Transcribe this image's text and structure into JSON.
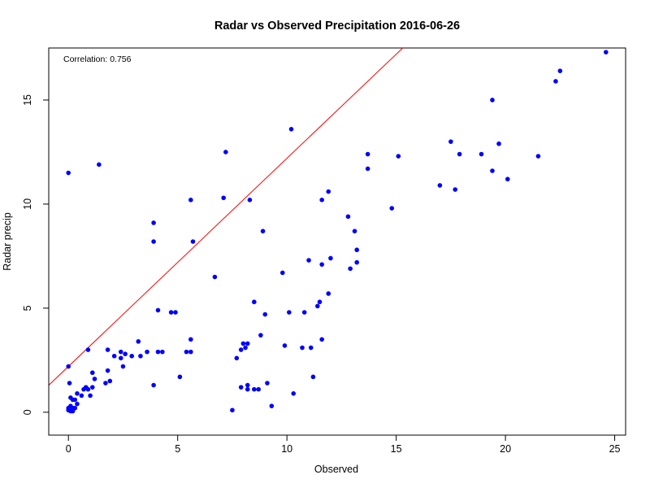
{
  "chart_data": {
    "type": "scatter",
    "title": "Radar vs Observed Precipitation 2016-06-26",
    "xlabel": "Observed",
    "ylabel": "Radar precip",
    "xlim": [
      -0.9,
      25.5
    ],
    "ylim": [
      -1.1,
      17.5
    ],
    "x_ticks": [
      "0",
      "5",
      "10",
      "15",
      "20",
      "25"
    ],
    "y_ticks": [
      "0",
      "5",
      "10",
      "15"
    ],
    "grid": false,
    "annotation": "Correlation:  0.756",
    "point_color": "#0000ff",
    "line_color": "#ff0000",
    "reference_line": {
      "intercept": 2.2,
      "slope": 1.0
    },
    "points": {
      "x": [
        24.6,
        22.5,
        22.3,
        19.4,
        17.5,
        19.7,
        18.9,
        21.5,
        17.9,
        19.4,
        20.1,
        17.0,
        17.7,
        13.7,
        13.7,
        15.1,
        14.8,
        12.8,
        13.1,
        13.2,
        13.2,
        12.9,
        11.9,
        11.6,
        11.0,
        12.0,
        11.6,
        11.9,
        11.5,
        11.4,
        10.8,
        10.1,
        9.8,
        11.6,
        10.7,
        11.1,
        9.9,
        11.2,
        10.3,
        10.2,
        8.3,
        8.9,
        7.2,
        7.1,
        5.6,
        5.7,
        6.7,
        3.9,
        3.9,
        9.0,
        8.8,
        8.5,
        8.2,
        8.0,
        8.1,
        7.9,
        7.7,
        8.2,
        7.9,
        8.2,
        8.5,
        8.7,
        9.1,
        9.3,
        7.5,
        4.1,
        5.6,
        0.0,
        1.4,
        4.1,
        4.7,
        4.9,
        3.2,
        5.6,
        5.4,
        5.1,
        3.6,
        4.3,
        3.9,
        0.9,
        1.8,
        2.4,
        2.1,
        2.6,
        2.4,
        2.9,
        3.3,
        2.5,
        1.8,
        1.9,
        1.7,
        1.1,
        1.2,
        1.1,
        1.0,
        0.7,
        0.8,
        0.9,
        0.6,
        0.4,
        0.3,
        0.2,
        0.1,
        0.3,
        0.1,
        0.2,
        0.0,
        0.0,
        0.1,
        0.2,
        0.4,
        0.0,
        0.05
      ],
      "y": [
        17.3,
        16.4,
        15.9,
        15.0,
        13.0,
        12.9,
        12.4,
        12.3,
        12.4,
        11.6,
        11.2,
        10.9,
        10.7,
        12.4,
        11.7,
        12.3,
        9.8,
        9.4,
        8.7,
        7.8,
        7.2,
        6.9,
        10.6,
        10.2,
        7.3,
        7.4,
        7.1,
        5.7,
        5.3,
        5.1,
        4.8,
        4.8,
        6.7,
        3.5,
        3.1,
        3.1,
        3.2,
        1.7,
        0.9,
        13.6,
        10.2,
        8.7,
        12.5,
        10.3,
        10.2,
        8.2,
        6.5,
        9.1,
        8.2,
        4.7,
        3.7,
        5.3,
        3.3,
        3.3,
        3.1,
        3.0,
        2.6,
        1.3,
        1.2,
        1.1,
        1.1,
        1.1,
        1.4,
        0.3,
        0.1,
        4.9,
        3.5,
        11.5,
        11.9,
        2.9,
        4.8,
        4.8,
        3.4,
        2.9,
        2.9,
        1.7,
        2.9,
        2.9,
        1.3,
        3.0,
        3.0,
        2.9,
        2.7,
        2.8,
        2.6,
        2.7,
        2.7,
        2.2,
        2.0,
        1.5,
        1.4,
        1.9,
        1.6,
        1.2,
        0.8,
        1.1,
        1.2,
        1.1,
        0.8,
        0.9,
        0.6,
        0.6,
        0.7,
        0.2,
        0.3,
        0.2,
        0.2,
        0.1,
        0.05,
        0.05,
        0.4,
        2.2,
        1.4
      ]
    }
  }
}
